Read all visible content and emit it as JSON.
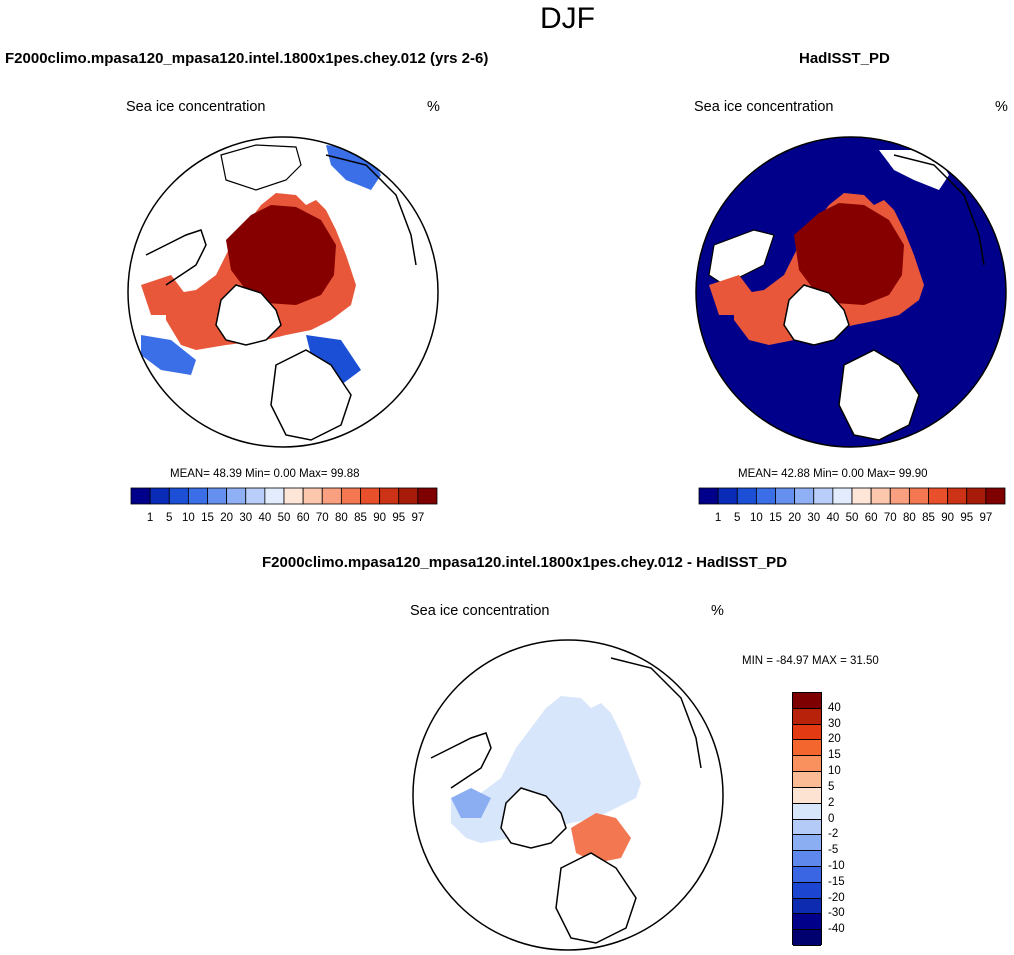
{
  "page": {
    "season": "DJF"
  },
  "panels": [
    {
      "title": "F2000climo.mpasa120_mpasa120.intel.1800x1pes.chey.012 (yrs 2-6)",
      "variable": "Sea ice concentration",
      "units": "%",
      "stats": "MEAN=  48.39  Min=   0.00  Max=  99.88"
    },
    {
      "title": "HadISST_PD",
      "variable": "Sea ice concentration",
      "units": "%",
      "stats": "MEAN=  42.88  Min=   0.00  Max=  99.90"
    },
    {
      "title": "F2000climo.mpasa120_mpasa120.intel.1800x1pes.chey.012 - HadISST_PD",
      "variable": "Sea ice concentration",
      "units": "%",
      "stats": "MIN = -84.97 MAX =  31.50"
    }
  ],
  "colorbar_abs": {
    "colors": [
      "#00008b",
      "#0a2bb8",
      "#1b4fd6",
      "#3a6fe8",
      "#6690f0",
      "#8fb0f5",
      "#b9cff9",
      "#e3ecfd",
      "#fde5d8",
      "#fbc7ad",
      "#f8a07f",
      "#f37852",
      "#e8502c",
      "#cc3215",
      "#a61c09",
      "#7f0000"
    ],
    "labels": [
      "1",
      "5",
      "10",
      "15",
      "20",
      "30",
      "40",
      "50",
      "60",
      "70",
      "80",
      "85",
      "90",
      "95",
      "97"
    ]
  },
  "colorbar_diff": {
    "colors": [
      "#7f0000",
      "#b8210a",
      "#e33a13",
      "#f3672f",
      "#f8915d",
      "#fbbc95",
      "#fde3d2",
      "#d8e6fb",
      "#b3cbf6",
      "#8badf1",
      "#5f88ec",
      "#3a66e4",
      "#1c46d1",
      "#0c2bb0",
      "#00008b"
    ],
    "labels": [
      "40",
      "30",
      "20",
      "15",
      "10",
      "5",
      "2",
      "0",
      "-2",
      "-5",
      "-10",
      "-15",
      "-20",
      "-30",
      "-40"
    ]
  }
}
